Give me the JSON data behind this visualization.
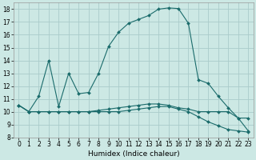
{
  "xlabel": "Humidex (Indice chaleur)",
  "background_color": "#cce8e4",
  "grid_color": "#aaccca",
  "line_color": "#1a6b6b",
  "xlim": [
    -0.5,
    23.5
  ],
  "ylim": [
    8,
    18.5
  ],
  "yticks": [
    8,
    9,
    10,
    11,
    12,
    13,
    14,
    15,
    16,
    17,
    18
  ],
  "xticks": [
    0,
    1,
    2,
    3,
    4,
    5,
    6,
    7,
    8,
    9,
    10,
    11,
    12,
    13,
    14,
    15,
    16,
    17,
    18,
    19,
    20,
    21,
    22,
    23
  ],
  "line1_x": [
    0,
    1,
    2,
    3,
    4,
    5,
    6,
    7,
    8,
    9,
    10,
    11,
    12,
    13,
    14,
    15,
    16,
    17,
    18,
    19,
    20,
    21,
    22,
    23
  ],
  "line1_y": [
    10.5,
    10.0,
    11.2,
    14.0,
    10.4,
    13.0,
    11.4,
    11.5,
    13.0,
    15.1,
    16.2,
    16.9,
    17.2,
    17.5,
    18.0,
    18.1,
    18.05,
    16.9,
    12.5,
    12.2,
    11.2,
    10.3,
    9.5,
    9.5
  ],
  "line2_x": [
    0,
    1,
    2,
    3,
    4,
    5,
    6,
    7,
    8,
    9,
    10,
    11,
    12,
    13,
    14,
    15,
    16,
    17,
    18,
    19,
    20,
    21,
    22,
    23
  ],
  "line2_y": [
    10.5,
    10.0,
    10.0,
    10.0,
    10.0,
    10.0,
    10.0,
    10.0,
    10.1,
    10.2,
    10.3,
    10.4,
    10.5,
    10.6,
    10.6,
    10.5,
    10.3,
    10.2,
    10.0,
    10.0,
    10.0,
    10.0,
    9.5,
    8.5
  ],
  "line3_x": [
    0,
    1,
    2,
    3,
    4,
    5,
    6,
    7,
    8,
    9,
    10,
    11,
    12,
    13,
    14,
    15,
    16,
    17,
    18,
    19,
    20,
    21,
    22,
    23
  ],
  "line3_y": [
    10.5,
    10.0,
    10.0,
    10.0,
    10.0,
    10.0,
    10.0,
    10.0,
    10.0,
    10.0,
    10.0,
    10.1,
    10.2,
    10.3,
    10.4,
    10.4,
    10.2,
    10.0,
    9.6,
    9.2,
    8.9,
    8.6,
    8.5,
    8.4
  ],
  "tick_fontsize": 5.5,
  "xlabel_fontsize": 6.5
}
